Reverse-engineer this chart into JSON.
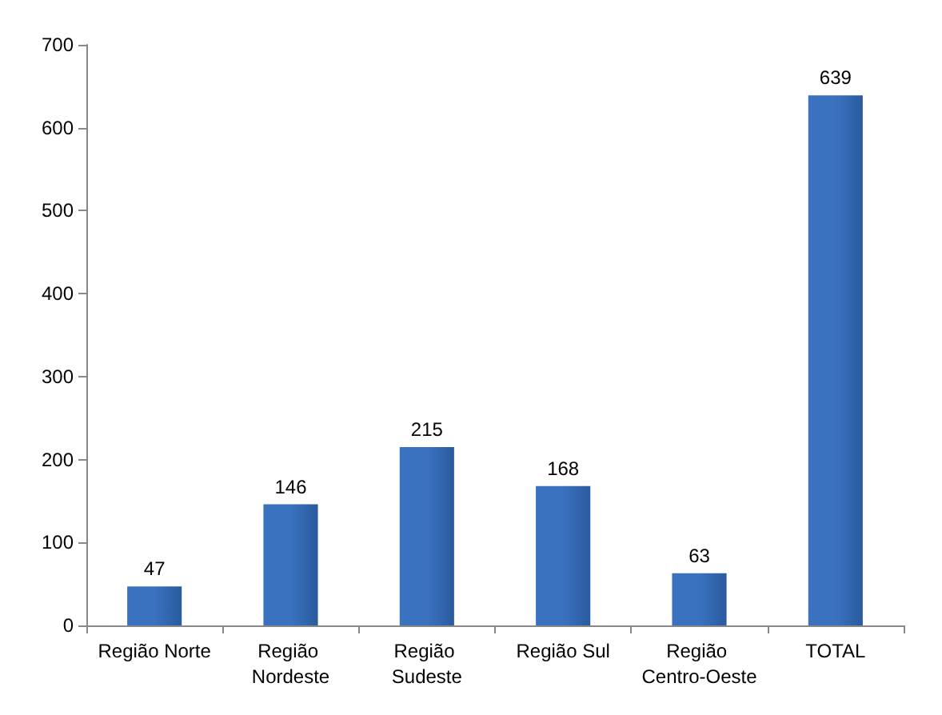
{
  "chart_data": {
    "type": "bar",
    "categories": [
      "Região Norte",
      "Região Nordeste",
      "Região Sudeste",
      "Região Sul",
      "Região Centro-Oeste",
      "TOTAL"
    ],
    "values": [
      47,
      146,
      215,
      168,
      63,
      639
    ],
    "color": "#3a72c0",
    "data_labels": true,
    "ylim": [
      0,
      700
    ],
    "yticks": [
      0,
      100,
      200,
      300,
      400,
      500,
      600,
      700
    ],
    "grid": false
  }
}
